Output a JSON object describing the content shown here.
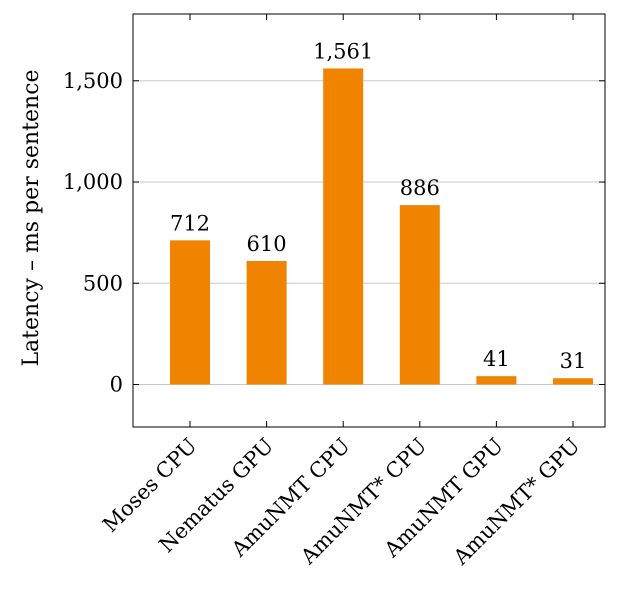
{
  "chart_data": {
    "type": "bar",
    "title": "",
    "xlabel": "",
    "ylabel": "Latency – ms per sentence",
    "categories": [
      "Moses CPU",
      "Nematus GPU",
      "AmuNMT CPU",
      "AmuNMT* CPU",
      "AmuNMT GPU",
      "AmuNMT* GPU"
    ],
    "values": [
      712,
      610,
      1561,
      886,
      41,
      31
    ],
    "value_labels": [
      "712",
      "610",
      "1,561",
      "886",
      "41",
      "31"
    ],
    "ylim": [
      -210,
      1830
    ],
    "yticks": [
      0,
      500,
      1000,
      1500
    ],
    "ytick_labels": [
      "0",
      "500",
      "1,000",
      "1,500"
    ],
    "grid": "horizontal",
    "legend": "none",
    "bar_color": "#f08300",
    "grid_color": "#c8c8c8"
  }
}
